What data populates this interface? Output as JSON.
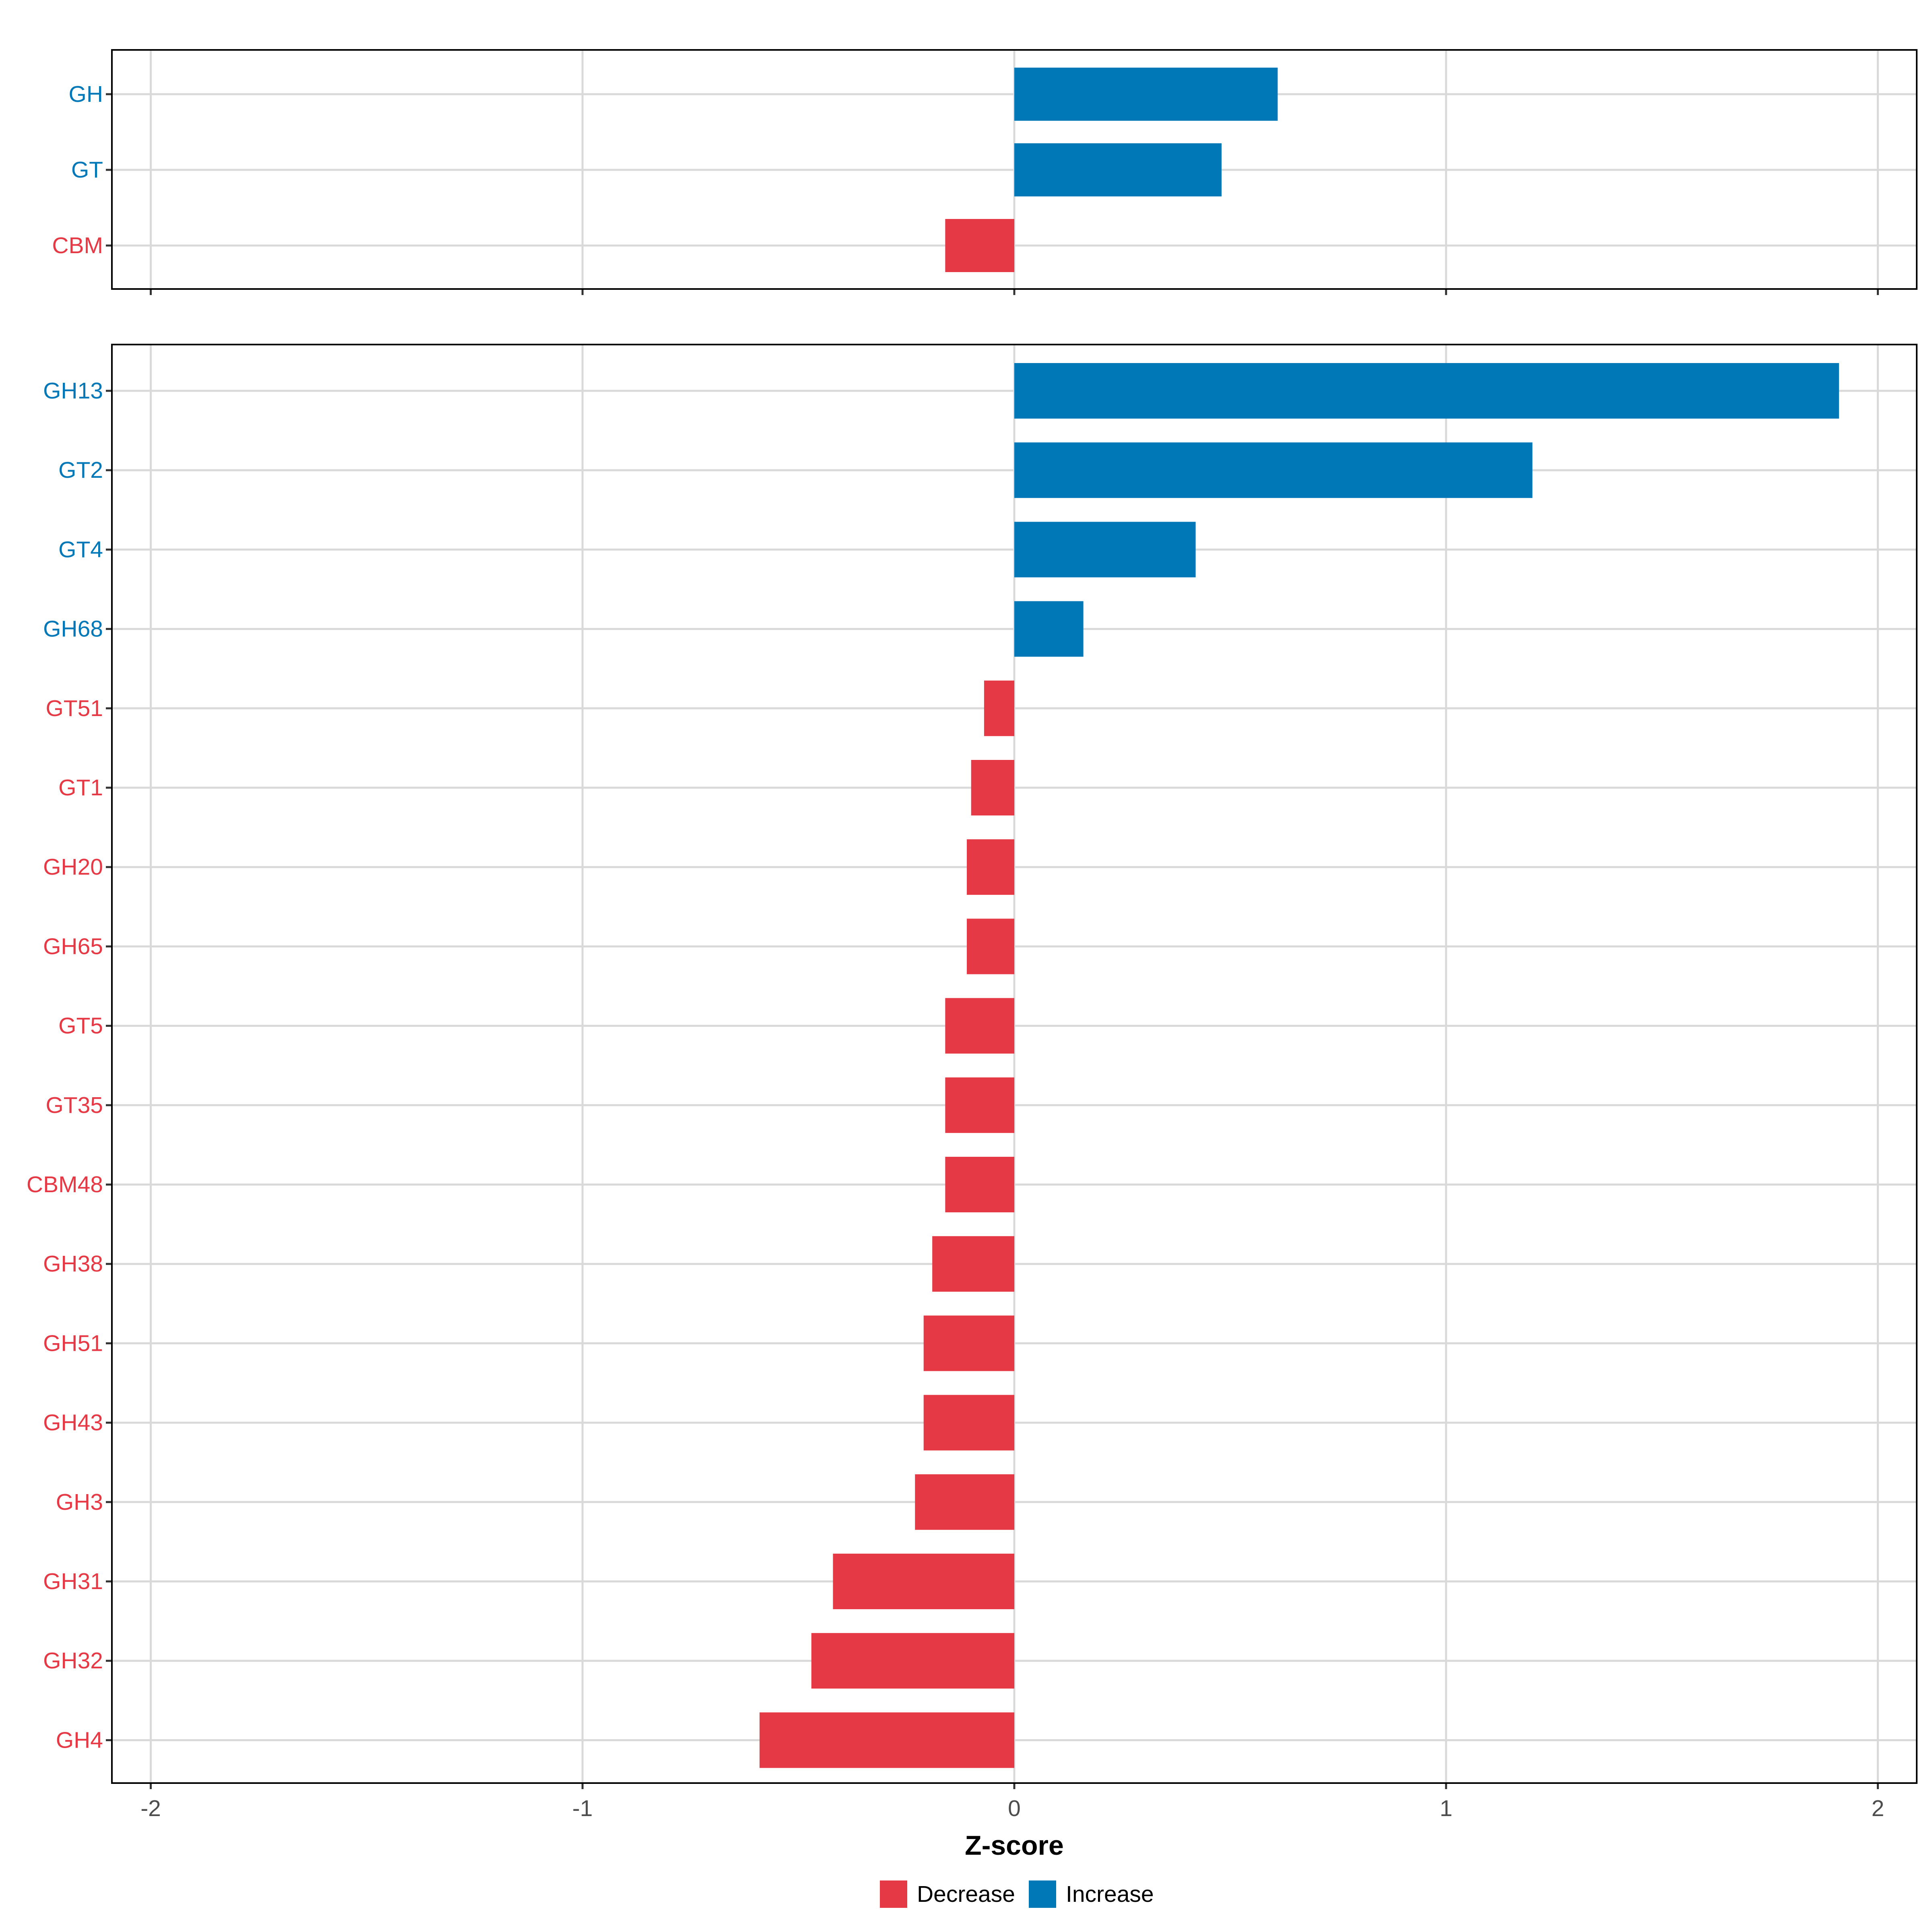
{
  "chart_data": {
    "type": "bar",
    "orientation": "horizontal",
    "xlabel": "Z-score",
    "xlim": [
      -2.09,
      2.09
    ],
    "xticks": [
      -2,
      -1,
      0,
      1,
      2
    ],
    "colors": {
      "Decrease": "#E63946",
      "Increase": "#0077B6"
    },
    "legend": {
      "position": "bottom",
      "entries": [
        {
          "key": "Decrease",
          "label": "Decrease"
        },
        {
          "key": "Increase",
          "label": "Increase"
        }
      ]
    },
    "panels": [
      {
        "name": "top",
        "categories": [
          "GH",
          "GT",
          "CBM"
        ],
        "values": [
          0.61,
          0.48,
          -0.16
        ]
      },
      {
        "name": "bottom",
        "categories": [
          "GH13",
          "GT2",
          "GT4",
          "GH68",
          "GT51",
          "GT1",
          "GH20",
          "GH65",
          "GT5",
          "GT35",
          "CBM48",
          "GH38",
          "GH51",
          "GH43",
          "GH3",
          "GH31",
          "GH32",
          "GH4"
        ],
        "values": [
          1.91,
          1.2,
          0.42,
          0.16,
          -0.07,
          -0.1,
          -0.11,
          -0.11,
          -0.16,
          -0.16,
          -0.16,
          -0.19,
          -0.21,
          -0.21,
          -0.23,
          -0.42,
          -0.47,
          -0.59
        ]
      }
    ]
  }
}
